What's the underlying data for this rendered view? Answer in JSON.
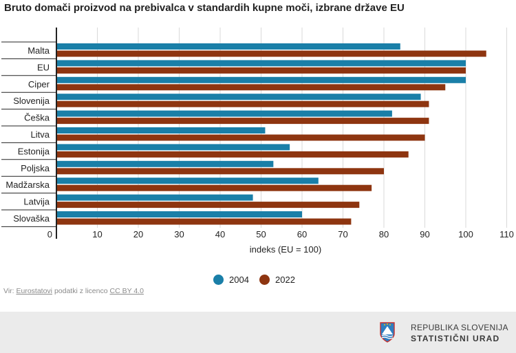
{
  "title": "Bruto domači proizvod na prebivalca v standardih kupne moči, izbrane države EU",
  "colors": {
    "series_2004": "#1a7fa8",
    "series_2022": "#8e3510",
    "grid": "#d9d9d9",
    "axis": "#222222"
  },
  "chart_data": {
    "type": "bar",
    "orientation": "horizontal",
    "title": "Bruto domači proizvod na prebivalca v standardih kupne moči, izbrane države EU",
    "xlabel": "indeks (EU = 100)",
    "ylabel": "",
    "xlim": [
      0,
      113
    ],
    "xticks": [
      0,
      10,
      20,
      30,
      40,
      50,
      60,
      70,
      80,
      90,
      100,
      110
    ],
    "categories": [
      "Malta",
      "EU",
      "Ciper",
      "Slovenija",
      "Češka",
      "Litva",
      "Estonija",
      "Poljska",
      "Madžarska",
      "Latvija",
      "Slovaška"
    ],
    "series": [
      {
        "name": "2004",
        "values": [
          84,
          100,
          100,
          89,
          82,
          51,
          57,
          53,
          64,
          48,
          60
        ]
      },
      {
        "name": "2022",
        "values": [
          105,
          100,
          95,
          91,
          91,
          90,
          86,
          80,
          77,
          74,
          72
        ]
      }
    ],
    "legend": "bottom-center",
    "grid": true
  },
  "source": {
    "prefix": "Vir:",
    "link1": "Eurostatovi",
    "middle": "podatki z licenco",
    "link2": "CC BY 4.0"
  },
  "footer": {
    "line1": "REPUBLIKA SLOVENIJA",
    "line2": "STATISTIČNI URAD",
    "logo_icon": "slovenia-coat-of-arms-icon"
  }
}
